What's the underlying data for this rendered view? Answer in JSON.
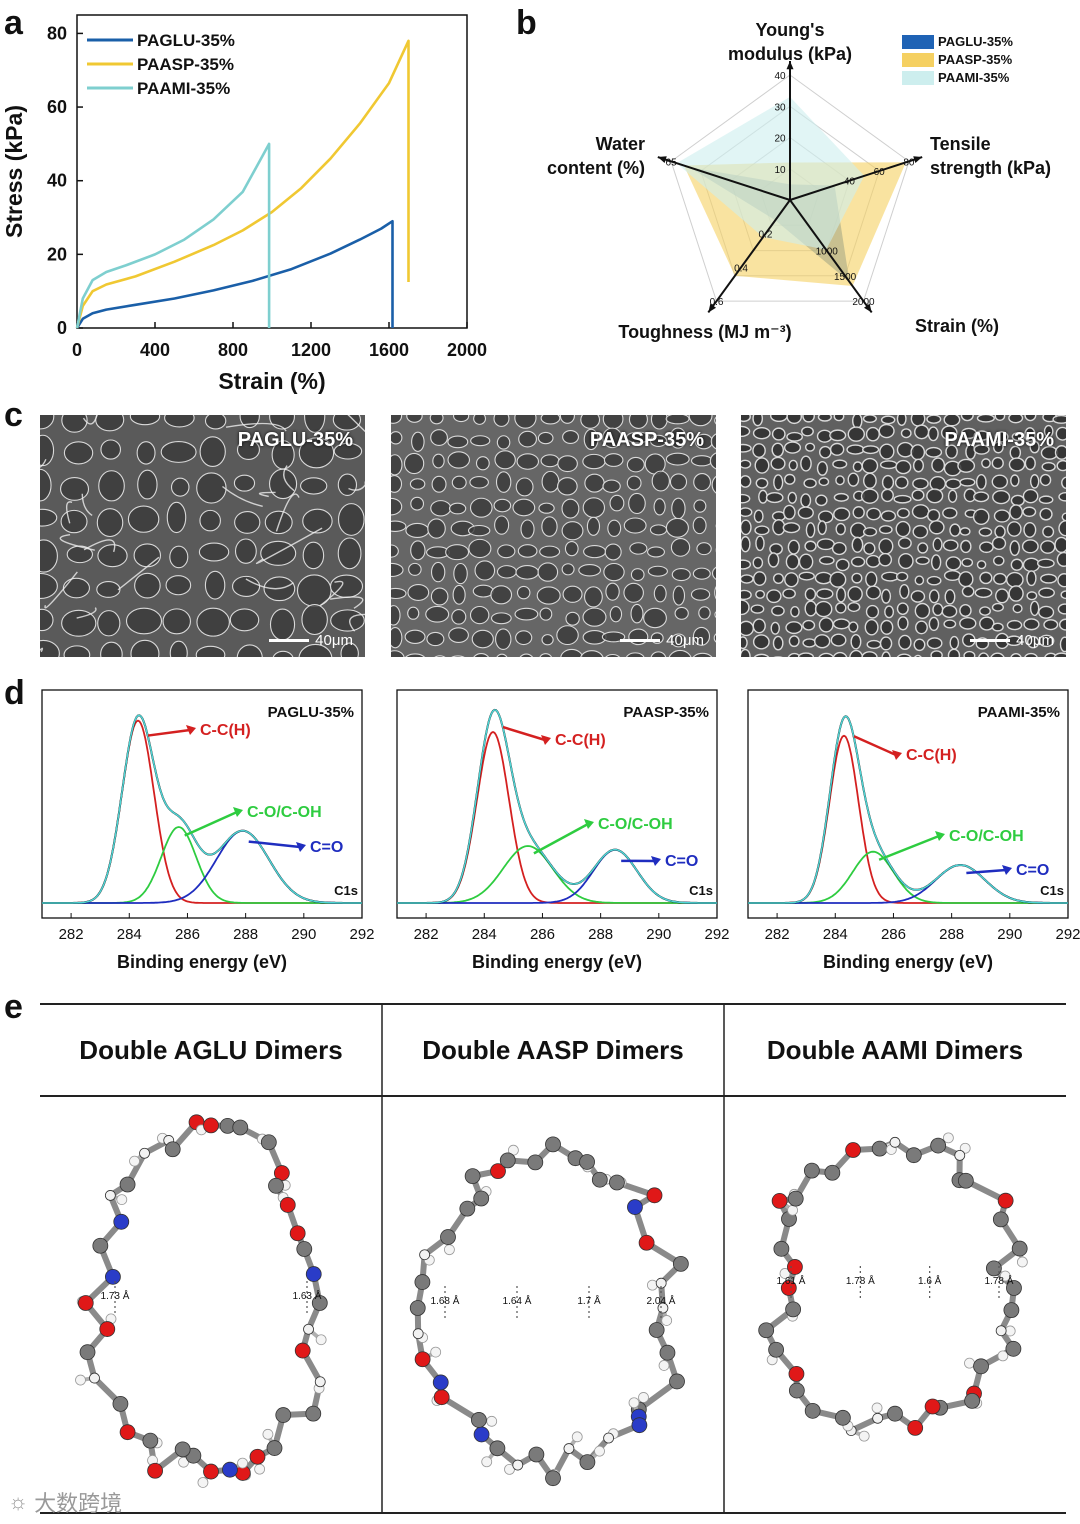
{
  "panels": {
    "a": "a",
    "b": "b",
    "c": "c",
    "d": "d",
    "e": "e"
  },
  "chart_data": [
    {
      "type": "line",
      "panel": "a",
      "xlabel": "Strain (%)",
      "ylabel": "Stress (kPa)",
      "xlim": [
        0,
        2000
      ],
      "ylim": [
        0,
        85
      ],
      "xticks": [
        0,
        400,
        800,
        1200,
        1600,
        2000
      ],
      "yticks": [
        0,
        20,
        40,
        60,
        80
      ],
      "legend_position": "top-left",
      "series": [
        {
          "name": "PAGLU-35%",
          "color": "#1a5fa8",
          "x": [
            0,
            30,
            80,
            150,
            300,
            500,
            700,
            900,
            1100,
            1300,
            1450,
            1560,
            1618,
            1618
          ],
          "y": [
            0,
            2.5,
            4,
            5,
            6.3,
            8,
            10.2,
            12.8,
            16,
            20.2,
            24,
            27,
            29,
            0
          ]
        },
        {
          "name": "PAASP-35%",
          "color": "#f0c832",
          "x": [
            0,
            30,
            80,
            150,
            300,
            500,
            700,
            850,
            1000,
            1150,
            1300,
            1450,
            1600,
            1700,
            1700
          ],
          "y": [
            0,
            6,
            10,
            11.8,
            14,
            18,
            22.5,
            26.5,
            31.5,
            38,
            46,
            55.5,
            66.5,
            78,
            12.5
          ]
        },
        {
          "name": "PAAMI-35%",
          "color": "#7ecfcf",
          "x": [
            0,
            30,
            80,
            150,
            250,
            400,
            550,
            700,
            850,
            985,
            985
          ],
          "y": [
            0,
            8,
            13,
            15.2,
            17,
            20,
            24,
            29.5,
            37,
            50,
            0
          ]
        }
      ]
    },
    {
      "type": "radar",
      "panel": "b",
      "axes": [
        {
          "label": [
            "Young's",
            "modulus (kPa)"
          ],
          "max": 40,
          "ticks": [
            10,
            20,
            30,
            40
          ]
        },
        {
          "label": [
            "Tensile",
            "strength (kPa)"
          ],
          "max": 80,
          "ticks": [
            40,
            60,
            80
          ]
        },
        {
          "label": [
            "Strain (%)"
          ],
          "max": 2000,
          "ticks": [
            1000,
            1500,
            2000
          ]
        },
        {
          "label": [
            "Toughness (MJ m⁻³)"
          ],
          "max": 0.6,
          "ticks": [
            0.2,
            0.4,
            0.6
          ]
        },
        {
          "label": [
            "Water",
            "content (%)"
          ],
          "max": 65,
          "ticks": [
            65
          ]
        }
      ],
      "legend_position": "top-right",
      "series": [
        {
          "name": "PAGLU-35%",
          "color": "#1f63b5",
          "values": [
            5,
            30,
            1620,
            0.12,
            55
          ]
        },
        {
          "name": "PAASP-35%",
          "color": "#f5d061",
          "values": [
            12,
            78,
            1700,
            0.45,
            58
          ]
        },
        {
          "name": "PAAMI-35%",
          "color": "#cdeeee",
          "values": [
            33,
            50,
            985,
            0.22,
            62
          ]
        }
      ]
    },
    {
      "type": "line",
      "panel": "d",
      "xlabel": "Binding energy (eV)",
      "xlim": [
        281,
        292
      ],
      "xticks": [
        282,
        284,
        286,
        288,
        290,
        292
      ],
      "subplots": [
        {
          "title": "PAGLU-35%",
          "core": "C1s",
          "peaks": [
            {
              "label": "C-C(H)",
              "color": "#d42020",
              "center": 284.3,
              "amp": 0.96,
              "width": 0.55
            },
            {
              "label": "C-O/C-OH",
              "color": "#2ecc40",
              "center": 285.7,
              "amp": 0.4,
              "width": 0.6
            },
            {
              "label": "C=O",
              "color": "#1f2dbf",
              "center": 287.9,
              "amp": 0.38,
              "width": 0.9
            }
          ]
        },
        {
          "title": "PAASP-35%",
          "core": "C1s",
          "peaks": [
            {
              "label": "C-C(H)",
              "color": "#d42020",
              "center": 284.3,
              "amp": 0.9,
              "width": 0.55
            },
            {
              "label": "C-O/C-OH",
              "color": "#2ecc40",
              "center": 285.5,
              "amp": 0.3,
              "width": 0.85
            },
            {
              "label": "C=O",
              "color": "#1f2dbf",
              "center": 288.5,
              "amp": 0.28,
              "width": 0.75
            }
          ]
        },
        {
          "title": "PAAMI-35%",
          "core": "C1s",
          "peaks": [
            {
              "label": "C-C(H)",
              "color": "#d42020",
              "center": 284.3,
              "amp": 0.88,
              "width": 0.5
            },
            {
              "label": "C-O/C-OH",
              "color": "#2ecc40",
              "center": 285.3,
              "amp": 0.27,
              "width": 0.7
            },
            {
              "label": "C=O",
              "color": "#1f2dbf",
              "center": 288.3,
              "amp": 0.2,
              "width": 0.85
            }
          ]
        }
      ]
    }
  ],
  "sem": [
    {
      "label": "PAGLU-35%",
      "scale": "40μm",
      "bg": "#5a5a5a"
    },
    {
      "label": "PAASP-35%",
      "scale": "40μm",
      "bg": "#666666"
    },
    {
      "label": "PAAMI-35%",
      "scale": "40μm",
      "bg": "#606060"
    }
  ],
  "molecules": [
    {
      "title": "Double AGLU Dimers",
      "bonds": [
        "1.73 Å",
        "1.63 Å"
      ]
    },
    {
      "title": "Double AASP Dimers",
      "bonds": [
        "1.68 Å",
        "1.64 Å",
        "1.7 Å",
        "2.04 Å"
      ]
    },
    {
      "title": "Double AAMI Dimers",
      "bonds": [
        "1.61 Å",
        "1.78 Å",
        "1.6 Å",
        "1.78 Å"
      ]
    }
  ],
  "watermark": "大数跨境"
}
